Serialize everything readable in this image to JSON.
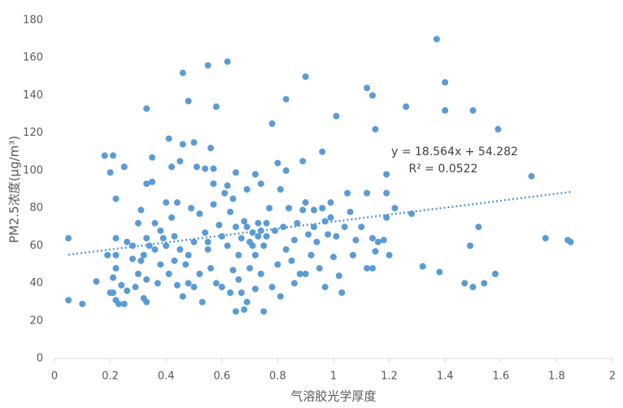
{
  "chart_data": {
    "type": "scatter",
    "x_label": "气溶胶光学厚度",
    "y_label": "PM2.5浓度(μg/m³)",
    "color": "#5b9bd5",
    "xlim": [
      0,
      2
    ],
    "xticks": [
      0,
      0.2,
      0.4,
      0.6,
      0.8,
      1,
      1.2,
      1.4,
      1.6,
      1.8,
      2
    ],
    "ylim": [
      0,
      180
    ],
    "yticks": [
      0,
      20,
      40,
      60,
      80,
      100,
      120,
      140,
      160,
      180
    ],
    "grid": false,
    "trendline": {
      "slope": 18.564,
      "intercept": 54.282,
      "x_range": [
        0.05,
        1.85
      ],
      "style": "dotted"
    },
    "annotations": [
      "y = 18.564x + 54.282",
      "R² = 0.0522"
    ],
    "x": [
      0.05,
      0.05,
      0.1,
      0.15,
      0.18,
      0.21,
      0.2,
      0.22,
      0.25,
      0.33,
      0.46,
      0.48,
      0.55,
      0.62,
      0.58,
      0.9,
      0.83,
      0.78,
      1.01,
      1.12,
      1.14,
      1.15,
      1.26,
      1.37,
      1.4,
      1.4,
      1.5,
      1.59,
      1.71,
      1.76,
      1.84,
      1.85,
      1.52,
      1.49,
      1.47,
      1.5,
      1.54,
      1.58,
      1.38,
      1.32,
      1.28,
      1.22,
      1.19,
      1.19,
      1.19,
      1.2,
      1.18,
      1.16,
      1.14,
      1.14,
      1.15,
      1.12,
      1.1,
      1.08,
      1.07,
      1.05,
      1.12,
      0.96,
      0.89,
      0.83,
      0.8,
      0.81,
      0.74,
      0.72,
      0.69,
      0.65,
      0.62,
      0.57,
      0.57,
      0.54,
      0.51,
      0.56,
      0.5,
      0.46,
      0.41,
      0.45,
      0.42,
      0.35,
      0.35,
      0.33,
      0.31,
      0.3,
      0.33,
      0.31,
      0.33,
      0.32,
      0.33,
      0.29,
      0.3,
      0.28,
      0.26,
      0.25,
      0.23,
      0.22,
      0.21,
      0.2,
      0.21,
      0.22,
      0.22,
      0.24,
      0.26,
      0.28,
      0.22,
      0.19,
      0.37,
      0.38,
      0.39,
      0.4,
      0.42,
      0.44,
      0.43,
      0.45,
      0.47,
      0.48,
      0.49,
      0.5,
      0.52,
      0.52,
      0.54,
      0.55,
      0.56,
      0.58,
      0.59,
      0.6,
      0.62,
      0.63,
      0.64,
      0.64,
      0.65,
      0.66,
      0.67,
      0.68,
      0.68,
      0.69,
      0.7,
      0.71,
      0.72,
      0.73,
      0.74,
      0.75,
      0.75,
      0.76,
      0.77,
      0.78,
      0.79,
      0.8,
      0.81,
      0.82,
      0.83,
      0.84,
      0.85,
      0.86,
      0.87,
      0.88,
      0.89,
      0.9,
      0.91,
      0.92,
      0.93,
      0.94,
      0.95,
      0.96,
      0.97,
      0.98,
      0.99,
      1.0,
      1.01,
      1.02,
      1.03,
      1.04,
      1.06,
      0.97,
      0.36,
      0.41,
      0.44,
      0.46,
      0.5,
      0.53,
      0.57,
      0.6,
      0.61,
      0.66,
      0.7,
      0.72,
      0.74,
      0.67,
      0.69,
      0.71,
      0.73,
      0.76,
      0.55,
      0.48,
      0.43,
      0.4,
      0.38,
      0.36,
      0.34,
      0.32,
      0.63,
      0.65,
      0.86,
      0.9,
      0.93,
      0.99
    ],
    "values": [
      64,
      31,
      29,
      41,
      108,
      108,
      99,
      85,
      102,
      133,
      152,
      137,
      156,
      158,
      134,
      150,
      138,
      125,
      129,
      144,
      140,
      122,
      134,
      170,
      147,
      132,
      132,
      122,
      97,
      64,
      63,
      62,
      70,
      60,
      40,
      38,
      40,
      45,
      46,
      49,
      77,
      80,
      88,
      98,
      75,
      55,
      63,
      62,
      64,
      48,
      57,
      48,
      70,
      63,
      55,
      88,
      88,
      110,
      105,
      100,
      104,
      90,
      93,
      98,
      90,
      99,
      92,
      93,
      101,
      101,
      102,
      112,
      115,
      114,
      117,
      105,
      102,
      107,
      94,
      93,
      79,
      72,
      64,
      52,
      42,
      32,
      30,
      38,
      45,
      53,
      36,
      29,
      29,
      31,
      35,
      35,
      43,
      48,
      55,
      39,
      62,
      60,
      64,
      55,
      40,
      50,
      64,
      83,
      75,
      83,
      65,
      58,
      50,
      40,
      80,
      62,
      45,
      77,
      67,
      58,
      48,
      40,
      71,
      38,
      60,
      78,
      85,
      47,
      25,
      55,
      35,
      26,
      73,
      30,
      62,
      67,
      55,
      65,
      45,
      25,
      60,
      72,
      80,
      38,
      68,
      50,
      33,
      70,
      58,
      80,
      52,
      63,
      72,
      45,
      79,
      83,
      66,
      55,
      70,
      62,
      48,
      80,
      73,
      66,
      83,
      54,
      65,
      44,
      35,
      70,
      78,
      38,
      58,
      45,
      39,
      33,
      38,
      30,
      82,
      65,
      88,
      42,
      48,
      37,
      68,
      64,
      70,
      60,
      72,
      65,
      62,
      55,
      52,
      60,
      68,
      72,
      60,
      55,
      35,
      70,
      40,
      45,
      79,
      75
    ]
  }
}
